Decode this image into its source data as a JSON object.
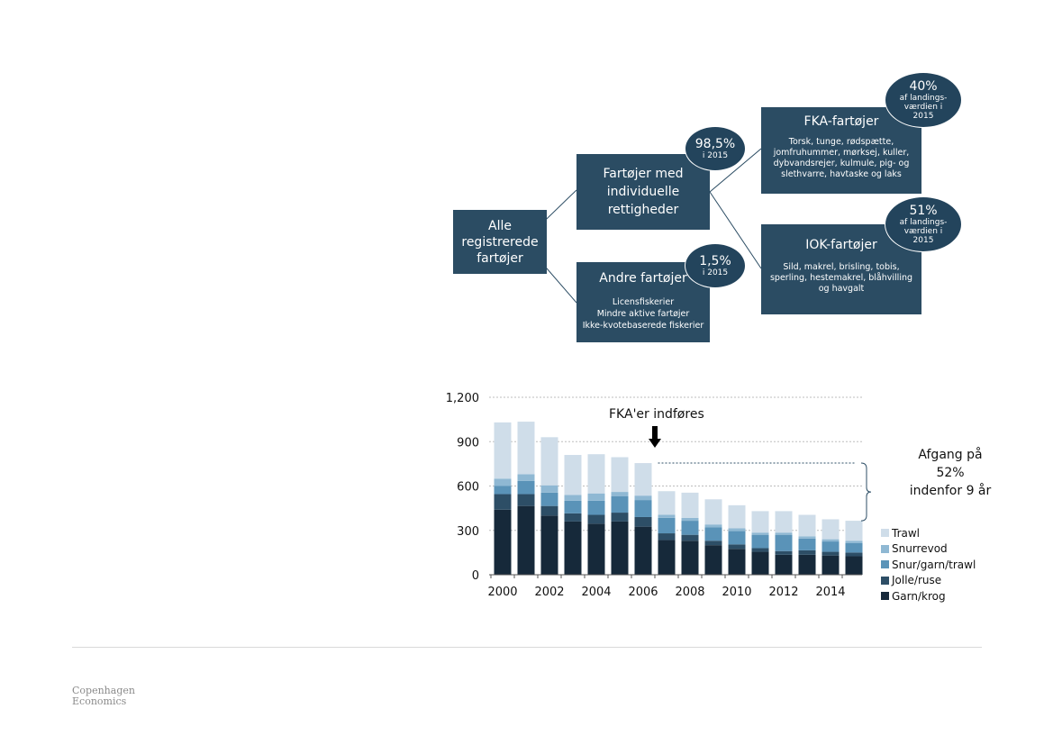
{
  "diagram": {
    "root": {
      "label": "Alle\nregistrerede\nfartøjer"
    },
    "individual": {
      "label": "Fartøjer med\nindividuelle\nrettigheder",
      "bubble_value": "98,5%",
      "bubble_note": "i 2015"
    },
    "other": {
      "label": "Andre fartøjer",
      "desc": "Licensfiskerier\nMindre aktive fartøjer\nIkke-kvotebaserede fiskerier",
      "bubble_value": "1,5%",
      "bubble_note": "i 2015"
    },
    "fka": {
      "label": "FKA-fartøjer",
      "desc": "Torsk, tunge, rødspætte,\njomfruhummer, mørksej, kuller,\ndybvandsrejer, kulmule, pig- og\nslethvarre, havtaske og laks",
      "bubble_value": "40%",
      "bubble_note": "af landings-\nværdien i\n2015"
    },
    "iok": {
      "label": "IOK-fartøjer",
      "desc": "Sild, makrel, brisling, tobis,\nsperling, hestemakrel, blåhvilling\nog havgalt",
      "bubble_value": "51%",
      "bubble_note": "af landings-\nværdien i\n2015"
    }
  },
  "chart_data": {
    "type": "bar",
    "stacked": true,
    "categories": [
      2000,
      2001,
      2002,
      2003,
      2004,
      2005,
      2006,
      2007,
      2008,
      2009,
      2010,
      2011,
      2012,
      2013,
      2014,
      2015
    ],
    "x_tick_labels": [
      "2000",
      "2002",
      "2004",
      "2006",
      "2008",
      "2010",
      "2012",
      "2014"
    ],
    "y_tick_labels": [
      "0",
      "300",
      "600",
      "900",
      "1,200"
    ],
    "ylim": [
      0,
      1200
    ],
    "grid": true,
    "legend_position": "bottom-right",
    "series": [
      {
        "name": "Garn/krog",
        "color": "#16293a",
        "values": [
          440,
          465,
          400,
          360,
          345,
          360,
          325,
          235,
          230,
          200,
          175,
          155,
          135,
          135,
          130,
          125
        ]
      },
      {
        "name": "Jolle/ruse",
        "color": "#2d4e66",
        "values": [
          105,
          80,
          65,
          55,
          60,
          60,
          65,
          45,
          40,
          30,
          30,
          25,
          25,
          30,
          25,
          25
        ]
      },
      {
        "name": "Snur/garn/trawl",
        "color": "#5a93b8",
        "values": [
          55,
          90,
          90,
          85,
          95,
          110,
          115,
          105,
          95,
          90,
          90,
          90,
          110,
          80,
          70,
          65
        ]
      },
      {
        "name": "Snurrevod",
        "color": "#8fb8d3",
        "values": [
          50,
          45,
          50,
          40,
          50,
          30,
          30,
          20,
          20,
          20,
          20,
          15,
          15,
          15,
          15,
          15
        ]
      },
      {
        "name": "Trawl",
        "color": "#cfdde9",
        "values": [
          380,
          355,
          325,
          270,
          265,
          235,
          220,
          160,
          170,
          170,
          155,
          145,
          145,
          145,
          135,
          135
        ]
      }
    ],
    "annotations": {
      "event_label": "FKA'er indføres",
      "decline_label": "Afgang på\n52%\nindenfor 9 år"
    }
  }
}
